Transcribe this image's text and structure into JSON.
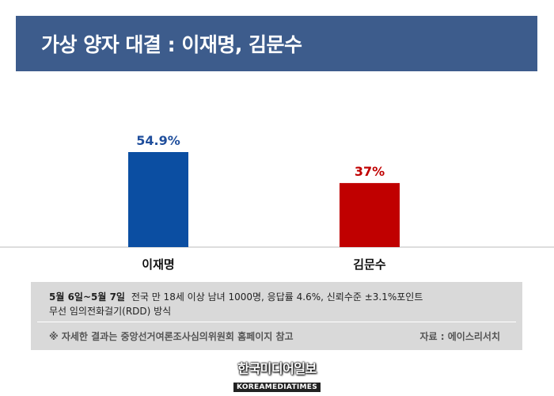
{
  "chart_data": {
    "type": "bar",
    "title": "가상 양자 대결 : 이재명, 김문수",
    "categories": [
      "이재명",
      "김문수"
    ],
    "values": [
      54.9,
      37
    ],
    "value_labels": [
      "54.9%",
      "37%"
    ],
    "colors": [
      "#0b4ea2",
      "#c00000"
    ],
    "label_colors": [
      "#1f4e9c",
      "#c00000"
    ],
    "ylim": [
      0,
      60
    ],
    "xlabel": "",
    "ylabel": "",
    "grid": false,
    "legend": "none"
  },
  "notes": {
    "dates": "5월 6일~5월 7일",
    "survey": "전국 만 18세 이상 남녀 1000명, 응답률 4.6%, 신뢰수준 ±3.1%포인트",
    "method": "무선 임의전화걸기(RDD) 방식",
    "reference": "※ 자세한 결과는 중앙선거여론조사심의위원회 홈페이지 참고",
    "source": "자료 : 에이스리서치"
  },
  "logo": {
    "korean": "한국미디어일보",
    "english": "KOREAMEDIATIMES"
  }
}
